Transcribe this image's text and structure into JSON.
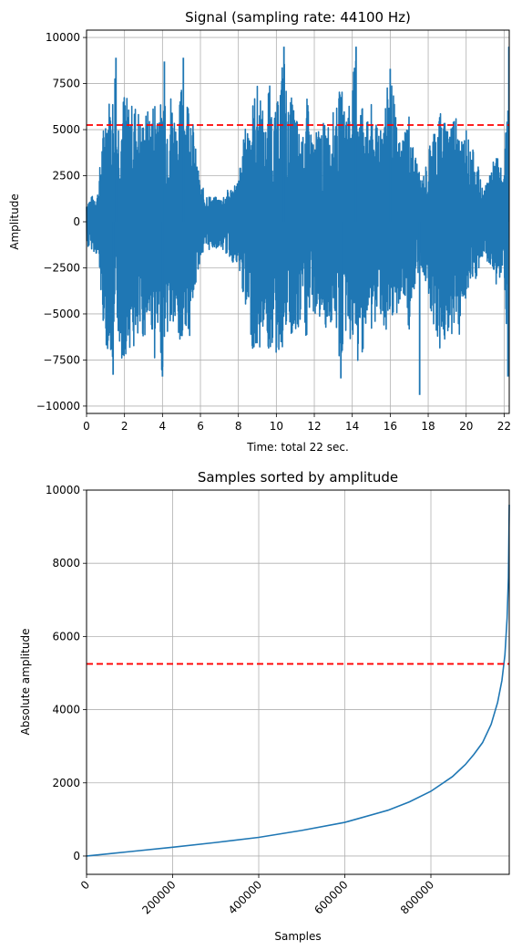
{
  "chart_data": [
    {
      "type": "line",
      "title": "Signal (sampling rate: 44100 Hz)",
      "xlabel": "Time: total 22 sec.",
      "ylabel": "Amplitude",
      "xlim": [
        0,
        22.27
      ],
      "ylim": [
        -10400,
        10400
      ],
      "xticks": [
        "0",
        "2",
        "4",
        "6",
        "8",
        "10",
        "12",
        "14",
        "16",
        "18",
        "20",
        "22"
      ],
      "yticks": [
        "10000",
        "7500",
        "5000",
        "2500",
        "0",
        "−2500",
        "−5000",
        "−7500",
        "−10000"
      ],
      "grid": true,
      "threshold": 5250,
      "series": [
        {
          "color": "#1f77b4",
          "envelope": {
            "x": [
              0,
              0.3,
              0.6,
              0.8,
              1.0,
              1.2,
              1.4,
              1.5,
              1.6,
              1.7,
              1.8,
              2.0,
              2.2,
              2.4,
              2.6,
              2.8,
              2.9,
              3.0,
              3.2,
              3.4,
              3.6,
              3.8,
              4.0,
              4.1,
              4.2,
              4.4,
              4.6,
              4.8,
              5.0,
              5.1,
              5.2,
              5.4,
              5.6,
              5.8,
              6.0,
              6.5,
              7.0,
              7.5,
              8.0,
              8.2,
              8.4,
              8.6,
              8.8,
              9.0,
              9.2,
              9.4,
              9.6,
              9.8,
              10.0,
              10.2,
              10.4,
              10.6,
              10.8,
              11.0,
              11.2,
              11.4,
              11.6,
              11.8,
              12.0,
              12.2,
              12.4,
              12.6,
              12.8,
              13.0,
              13.2,
              13.4,
              13.6,
              13.8,
              14.0,
              14.2,
              14.4,
              14.6,
              14.8,
              15.0,
              15.2,
              15.4,
              15.6,
              15.8,
              16.0,
              16.2,
              16.4,
              16.6,
              16.8,
              17.0,
              17.2,
              17.4,
              17.6,
              17.8,
              18.0,
              18.2,
              18.4,
              18.6,
              18.8,
              19.0,
              19.2,
              19.4,
              19.6,
              19.8,
              20.0,
              20.2,
              20.4,
              20.6,
              20.8,
              21.0,
              21.2,
              21.4,
              21.6,
              21.8,
              22.0,
              22.2
            ],
            "max": [
              1200,
              1400,
              1700,
              4300,
              6200,
              6800,
              7000,
              8900,
              5500,
              6000,
              5800,
              7300,
              6500,
              6400,
              6500,
              6000,
              5100,
              5800,
              6100,
              6000,
              7000,
              7200,
              5800,
              8700,
              6000,
              7300,
              6300,
              5000,
              7700,
              8900,
              6000,
              7600,
              5500,
              3500,
              2000,
              1400,
              1300,
              1800,
              2300,
              4000,
              5400,
              5700,
              6800,
              7500,
              7200,
              4500,
              7900,
              6000,
              6000,
              7900,
              9500,
              6000,
              6800,
              6200,
              5000,
              4600,
              6900,
              5100,
              4600,
              5200,
              5300,
              5500,
              5500,
              6000,
              6300,
              7600,
              6100,
              6800,
              7500,
              9500,
              6300,
              7200,
              5400,
              6400,
              5000,
              5900,
              6000,
              7000,
              8300,
              6700,
              4600,
              4400,
              5500,
              6000,
              4200,
              3500,
              2200,
              2800,
              3500,
              5300,
              5200,
              6300,
              5500,
              5400,
              6300,
              5800,
              6700,
              4500,
              5600,
              3900,
              3900,
              3200,
              2000,
              1800,
              2900,
              3200,
              3700,
              3100,
              2300,
              9500
            ],
            "min": [
              -1400,
              -1500,
              -1900,
              -4600,
              -6800,
              -7000,
              -8300,
              -7500,
              -6000,
              -6200,
              -8000,
              -7300,
              -7000,
              -6600,
              -7700,
              -6500,
              -5900,
              -6500,
              -5800,
              -5600,
              -7600,
              -6600,
              -8400,
              -6400,
              -6200,
              -6000,
              -5800,
              -6600,
              -7600,
              -6000,
              -5600,
              -6400,
              -5000,
              -3100,
              -2000,
              -1500,
              -1400,
              -1900,
              -2700,
              -3600,
              -5400,
              -5800,
              -7300,
              -6900,
              -7100,
              -4800,
              -7400,
              -6600,
              -7500,
              -7000,
              -6900,
              -5600,
              -6500,
              -6700,
              -6200,
              -4900,
              -6800,
              -4800,
              -5100,
              -5400,
              -5300,
              -5800,
              -5600,
              -5900,
              -6200,
              -8500,
              -6000,
              -6400,
              -6600,
              -8200,
              -7600,
              -6800,
              -5700,
              -6000,
              -5800,
              -4600,
              -5400,
              -6700,
              -6900,
              -5300,
              -4900,
              -4200,
              -4600,
              -6000,
              -4500,
              -3300,
              -2300,
              -3100,
              -3800,
              -5300,
              -5900,
              -7300,
              -6300,
              -7300,
              -6300,
              -5400,
              -6700,
              -4500,
              -4300,
              -4000,
              -3500,
              -3000,
              -2200,
              -1900,
              -2500,
              -2600,
              -3500,
              -3300,
              -2300,
              -8400
            ]
          },
          "spikes": [
            [
              17.55,
              -9400
            ],
            [
              22.25,
              9500
            ],
            [
              22.2,
              -8400
            ],
            [
              1.55,
              8900
            ],
            [
              10.4,
              9500
            ],
            [
              14.2,
              9500
            ],
            [
              4.1,
              8700
            ],
            [
              5.1,
              8900
            ],
            [
              16.0,
              8300
            ],
            [
              13.4,
              -8500
            ],
            [
              4.0,
              -8400
            ],
            [
              1.4,
              -8300
            ]
          ]
        }
      ]
    },
    {
      "type": "line",
      "title": "Samples sorted by amplitude",
      "xlabel": "Samples",
      "ylabel": "Absolute amplitude",
      "xlim": [
        0,
        982000
      ],
      "ylim": [
        -500,
        10000
      ],
      "xticks": [
        "0",
        "200000",
        "400000",
        "600000",
        "800000"
      ],
      "yticks": [
        "10000",
        "8000",
        "6000",
        "4000",
        "2000",
        "0"
      ],
      "grid": true,
      "threshold": 5250,
      "series": [
        {
          "color": "#1f77b4",
          "x": [
            0,
            50000,
            100000,
            200000,
            300000,
            400000,
            500000,
            600000,
            700000,
            750000,
            800000,
            850000,
            880000,
            900000,
            920000,
            940000,
            955000,
            965000,
            972000,
            977000,
            980000,
            982000
          ],
          "y": [
            0,
            60,
            120,
            240,
            370,
            510,
            700,
            920,
            1250,
            1480,
            1770,
            2170,
            2500,
            2780,
            3100,
            3600,
            4200,
            4800,
            5500,
            6500,
            7600,
            9600
          ]
        }
      ]
    }
  ]
}
